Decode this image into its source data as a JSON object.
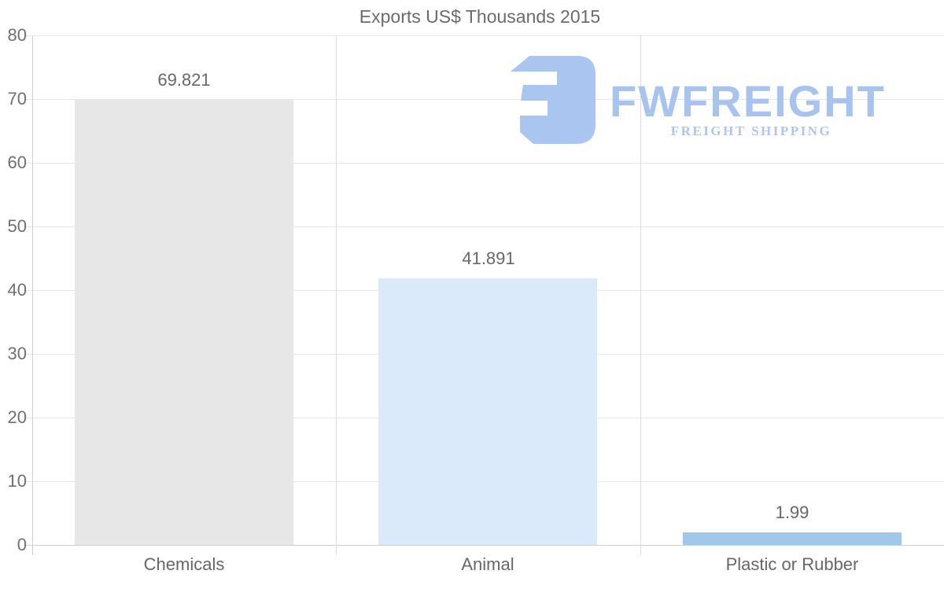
{
  "title": "Exports US$ Thousands 2015",
  "logo": {
    "wordmark": "FWFREIGHT",
    "tagline": "FREIGHT SHIPPING",
    "glyph_color": "#a9c5f0",
    "wordmark_color": "#a7c3ee",
    "tagline_color": "#aec5f0"
  },
  "chart_data": {
    "type": "bar",
    "title": "Exports US$ Thousands 2015",
    "categories": [
      "Chemicals",
      "Animal",
      "Plastic or Rubber"
    ],
    "values": [
      69.821,
      41.891,
      1.99
    ],
    "value_labels": [
      "69.821",
      "41.891",
      "1.99"
    ],
    "bar_colors": [
      "#e7e7e7",
      "#dbeafa",
      "#9fc8ea"
    ],
    "ylim": [
      0,
      80
    ],
    "yticks": [
      0,
      10,
      20,
      30,
      40,
      50,
      60,
      70,
      80
    ],
    "grid": true,
    "legend": "none",
    "colors": {
      "grid_line": "#e6e6e6",
      "separator_line": "#dedede",
      "axis_line": "#cfcfcf",
      "label_text": "#676767"
    }
  }
}
